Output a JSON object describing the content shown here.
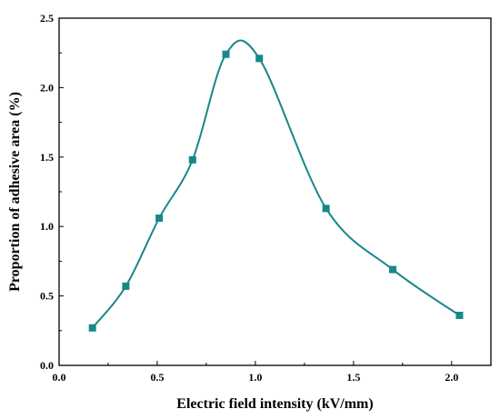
{
  "chart_data": {
    "type": "line",
    "title": "",
    "xlabel": "Electric field intensity (kV/mm)",
    "ylabel": "Proportion of adhesive area (%)",
    "xlim": [
      0.0,
      2.2
    ],
    "ylim": [
      0.0,
      2.5
    ],
    "xticks": [
      "0.0",
      "0.5",
      "1.0",
      "1.5",
      "2.0"
    ],
    "yticks": [
      "0.0",
      "0.5",
      "1.0",
      "1.5",
      "2.0",
      "2.5"
    ],
    "grid": false,
    "marker": "square",
    "smooth": true,
    "color": "#17888A",
    "series": [
      {
        "x": [
          0.17,
          0.34,
          0.51,
          0.68,
          0.85,
          1.02,
          1.36,
          1.7,
          2.04
        ],
        "y": [
          0.27,
          0.57,
          1.06,
          1.48,
          2.24,
          2.21,
          1.13,
          0.69,
          0.36
        ]
      }
    ]
  }
}
